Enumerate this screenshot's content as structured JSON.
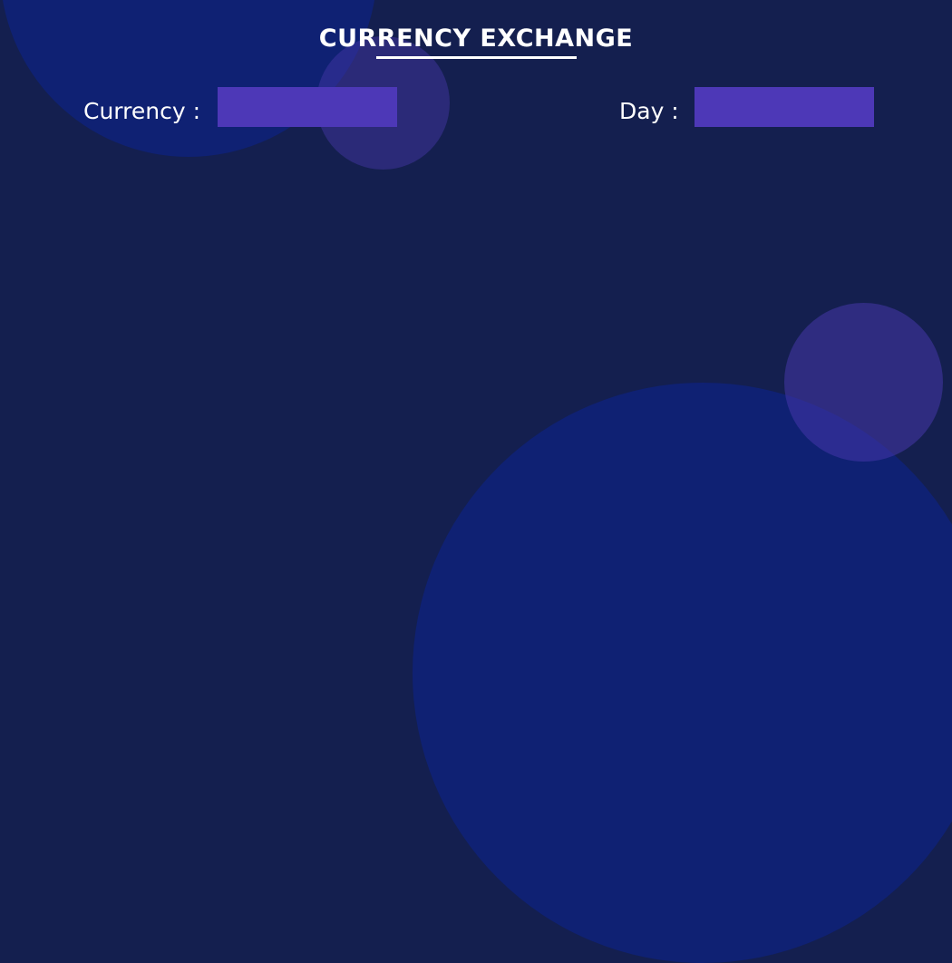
{
  "page": {
    "title": "CURRENCY EXCHANGE"
  },
  "form": {
    "currency": {
      "label": "Currency :",
      "value": "",
      "placeholder": ""
    },
    "day": {
      "label": "Day :",
      "value": "",
      "placeholder": ""
    }
  },
  "colors": {
    "background": "#141f4f",
    "accent_circle": "#0f2173",
    "input_fill": "#4d38b7",
    "text": "#ffffff"
  }
}
